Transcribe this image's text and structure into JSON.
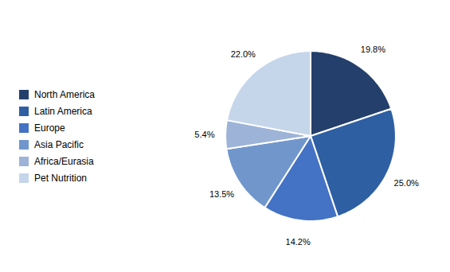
{
  "chart_data": {
    "type": "pie",
    "categories": [
      "North America",
      "Latin America",
      "Europe",
      "Asia Pacific",
      "Africa/Eurasia",
      "Pet Nutrition"
    ],
    "values": [
      19.8,
      25.0,
      14.2,
      13.5,
      5.4,
      22.0
    ],
    "value_labels": [
      "19.8%",
      "25.0%",
      "14.2%",
      "13.5%",
      "5.4%",
      "22.0%"
    ],
    "colors": [
      "#243F6B",
      "#2E5FA3",
      "#4472C4",
      "#7096CC",
      "#9DB3D8",
      "#C5D5EA"
    ],
    "data_labels": true,
    "legend": "left"
  }
}
